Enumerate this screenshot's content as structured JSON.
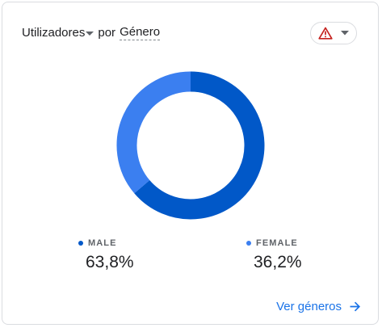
{
  "header": {
    "metric_label": "Utilizadores",
    "connector": "por",
    "dimension_label": "Género"
  },
  "alert_button": {
    "icon": "warning-icon",
    "dropdown_icon": "chevron-down-icon",
    "warning_color": "#c5221f"
  },
  "chart_data": {
    "type": "pie",
    "style": "donut",
    "title": "",
    "series": [
      {
        "name": "MALE",
        "value": 63.8,
        "display": "63,8%",
        "color": "#0158c8"
      },
      {
        "name": "FEMALE",
        "value": 36.2,
        "display": "36,2%",
        "color": "#3b7ff0"
      }
    ]
  },
  "footer": {
    "link_label": "Ver géneros",
    "link_icon": "arrow-right-icon",
    "link_color": "#1a73e8"
  }
}
